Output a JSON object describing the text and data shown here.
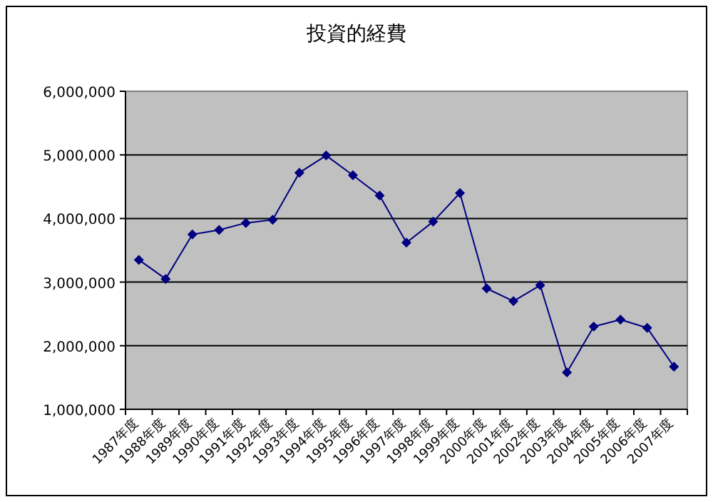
{
  "chart_data": {
    "type": "line",
    "title": "投資的経費",
    "categories": [
      "1987年度",
      "1988年度",
      "1989年度",
      "1990年度",
      "1991年度",
      "1992年度",
      "1993年度",
      "1994年度",
      "1995年度",
      "1996年度",
      "1997年度",
      "1998年度",
      "1999年度",
      "2000年度",
      "2001年度",
      "2002年度",
      "2003年度",
      "2004年度",
      "2005年度",
      "2006年度",
      "2007年度"
    ],
    "series": [
      {
        "color": "#000080",
        "values": [
          3350000,
          3050000,
          3750000,
          3820000,
          3930000,
          3980000,
          4720000,
          4990000,
          4680000,
          4360000,
          3620000,
          3950000,
          4400000,
          2900000,
          2700000,
          2950000,
          1580000,
          2300000,
          2410000,
          2280000,
          1670000
        ]
      }
    ],
    "ylim": [
      1000000,
      6000000
    ],
    "yticks": [
      {
        "value": 1000000,
        "label": "1,000,000"
      },
      {
        "value": 2000000,
        "label": "2,000,000"
      },
      {
        "value": 3000000,
        "label": "3,000,000"
      },
      {
        "value": 4000000,
        "label": "4,000,000"
      },
      {
        "value": 5000000,
        "label": "5,000,000"
      },
      {
        "value": 6000000,
        "label": "6,000,000"
      }
    ],
    "grid": "y",
    "marker": "diamond",
    "line_style": "solid"
  }
}
